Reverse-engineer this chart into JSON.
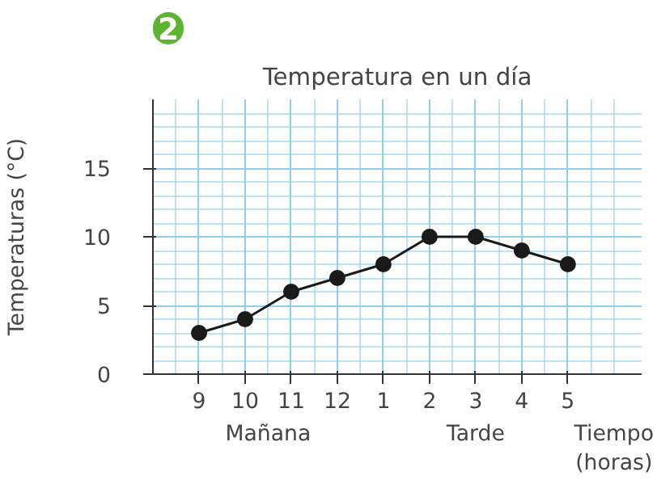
{
  "chart_data": {
    "type": "line",
    "title": "Temperatura en un día",
    "xlabel": "Tiempo (horas)",
    "ylabel": "Temperaturas (°C)",
    "annotations": [
      "2",
      "Mañana",
      "Tarde"
    ],
    "categories": [
      "9",
      "10",
      "11",
      "12",
      "1",
      "2",
      "3",
      "4",
      "5"
    ],
    "series": [
      {
        "color": "#1a1a1a",
        "values": [
          3,
          4,
          6,
          7,
          8,
          10,
          10,
          9,
          8
        ]
      }
    ],
    "ylim": [
      0,
      20
    ],
    "yticks": [
      0,
      5,
      10,
      15
    ],
    "grid": true,
    "marker": "circle",
    "line_style": "solid"
  }
}
